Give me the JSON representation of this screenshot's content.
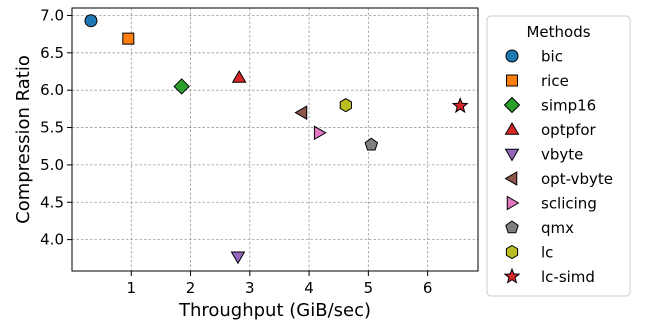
{
  "chart_data": {
    "type": "scatter",
    "xlabel": "Throughput (GiB/sec)",
    "ylabel": "Compression Ratio",
    "xlim": [
      0,
      6.85
    ],
    "ylim": [
      3.58,
      7.1
    ],
    "x_ticks": [
      1,
      2,
      3,
      4,
      5,
      6
    ],
    "y_ticks": [
      4.0,
      4.5,
      5.0,
      5.5,
      6.0,
      6.5,
      7.0
    ],
    "x_tick_labels": [
      "1",
      "2",
      "3",
      "4",
      "5",
      "6"
    ],
    "y_tick_labels": [
      "4.0",
      "4.5",
      "5.0",
      "5.5",
      "6.0",
      "6.5",
      "7.0"
    ],
    "grid": true,
    "legend": {
      "title": "Methods",
      "placement": "outside-right"
    },
    "series": [
      {
        "name": "bic",
        "x": 0.32,
        "y": 6.93,
        "marker": "circle",
        "color": "#1f77b4"
      },
      {
        "name": "rice",
        "x": 0.95,
        "y": 6.69,
        "marker": "square",
        "color": "#ff7f0e"
      },
      {
        "name": "simp16",
        "x": 1.85,
        "y": 6.05,
        "marker": "diamond",
        "color": "#2ca02c"
      },
      {
        "name": "optpfor",
        "x": 2.82,
        "y": 6.17,
        "marker": "triangle-up",
        "color": "#d62728"
      },
      {
        "name": "vbyte",
        "x": 2.8,
        "y": 3.77,
        "marker": "triangle-down",
        "color": "#9467bd"
      },
      {
        "name": "opt-vbyte",
        "x": 3.88,
        "y": 5.7,
        "marker": "triangle-left",
        "color": "#8c564b"
      },
      {
        "name": "sclicing",
        "x": 4.17,
        "y": 5.43,
        "marker": "triangle-right",
        "color": "#e377c2"
      },
      {
        "name": "qmx",
        "x": 5.05,
        "y": 5.27,
        "marker": "pentagon",
        "color": "#7f7f7f"
      },
      {
        "name": "lc",
        "x": 4.62,
        "y": 5.8,
        "marker": "hexagon",
        "color": "#bcbd22"
      },
      {
        "name": "lc-simd",
        "x": 6.55,
        "y": 5.79,
        "marker": "star",
        "color": "#d62728"
      }
    ]
  }
}
